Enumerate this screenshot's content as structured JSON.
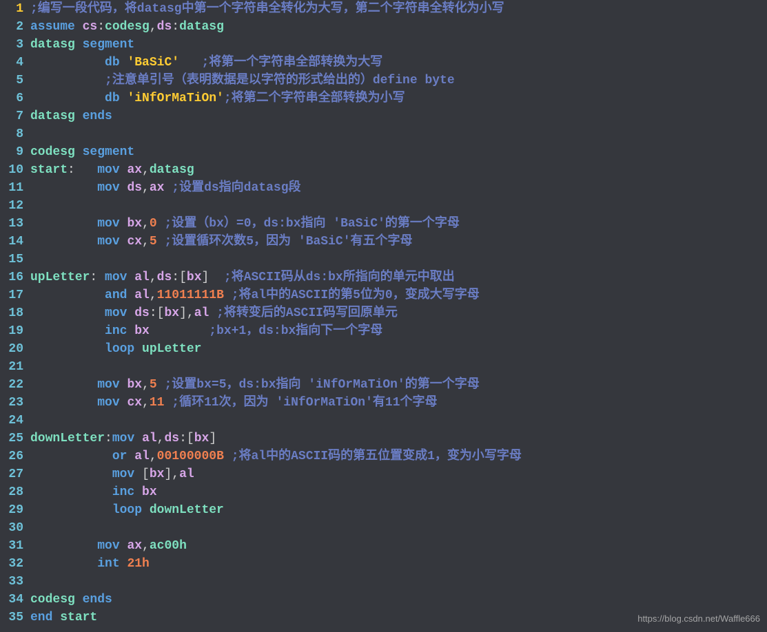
{
  "colors": {
    "bg": "#35373d",
    "gutter_current": "#ffcc33",
    "gutter_normal": "#6ec1d8",
    "keyword": "#5aa0e0",
    "identifier": "#7ee0c0",
    "register": "#d7a6e8",
    "number": "#f08050",
    "string": "#ffcc33",
    "comment": "#6a7dc4",
    "punct": "#d0d0d0"
  },
  "watermark": "https://blog.csdn.net/Waffle666",
  "lines": [
    {
      "n": 1,
      "current": true,
      "tokens": [
        {
          "c": "comment",
          "t": ";编写一段代码，将datasg中第一个字符串全转化为大写，第二个字符串全转化为小写"
        }
      ]
    },
    {
      "n": 2,
      "tokens": [
        {
          "c": "keyword",
          "t": "assume "
        },
        {
          "c": "register",
          "t": "cs"
        },
        {
          "c": "punct",
          "t": ":"
        },
        {
          "c": "identifier",
          "t": "codesg"
        },
        {
          "c": "punct",
          "t": ","
        },
        {
          "c": "register",
          "t": "ds"
        },
        {
          "c": "punct",
          "t": ":"
        },
        {
          "c": "identifier",
          "t": "datasg"
        }
      ]
    },
    {
      "n": 3,
      "tokens": [
        {
          "c": "identifier",
          "t": "datasg "
        },
        {
          "c": "keyword",
          "t": "segment"
        }
      ]
    },
    {
      "n": 4,
      "tokens": [
        {
          "c": "punct",
          "t": "          "
        },
        {
          "c": "keyword",
          "t": "db "
        },
        {
          "c": "string",
          "t": "'BaSiC'"
        },
        {
          "c": "punct",
          "t": "   "
        },
        {
          "c": "comment",
          "t": ";将第一个字符串全部转换为大写"
        }
      ]
    },
    {
      "n": 5,
      "tokens": [
        {
          "c": "punct",
          "t": "          "
        },
        {
          "c": "comment",
          "t": ";注意单引号（表明数据是以字符的形式给出的）define byte"
        }
      ]
    },
    {
      "n": 6,
      "tokens": [
        {
          "c": "punct",
          "t": "          "
        },
        {
          "c": "keyword",
          "t": "db "
        },
        {
          "c": "string",
          "t": "'iNfOrMaTiOn'"
        },
        {
          "c": "comment",
          "t": ";将第二个字符串全部转换为小写"
        }
      ]
    },
    {
      "n": 7,
      "tokens": [
        {
          "c": "identifier",
          "t": "datasg "
        },
        {
          "c": "keyword",
          "t": "ends"
        }
      ]
    },
    {
      "n": 8,
      "tokens": []
    },
    {
      "n": 9,
      "tokens": [
        {
          "c": "identifier",
          "t": "codesg "
        },
        {
          "c": "keyword",
          "t": "segment"
        }
      ]
    },
    {
      "n": 10,
      "tokens": [
        {
          "c": "identifier",
          "t": "start"
        },
        {
          "c": "punct",
          "t": ":   "
        },
        {
          "c": "keyword",
          "t": "mov "
        },
        {
          "c": "register",
          "t": "ax"
        },
        {
          "c": "punct",
          "t": ","
        },
        {
          "c": "identifier",
          "t": "datasg"
        }
      ]
    },
    {
      "n": 11,
      "tokens": [
        {
          "c": "punct",
          "t": "         "
        },
        {
          "c": "keyword",
          "t": "mov "
        },
        {
          "c": "register",
          "t": "ds"
        },
        {
          "c": "punct",
          "t": ","
        },
        {
          "c": "register",
          "t": "ax"
        },
        {
          "c": "punct",
          "t": " "
        },
        {
          "c": "comment",
          "t": ";设置ds指向datasg段"
        }
      ]
    },
    {
      "n": 12,
      "tokens": []
    },
    {
      "n": 13,
      "tokens": [
        {
          "c": "punct",
          "t": "         "
        },
        {
          "c": "keyword",
          "t": "mov "
        },
        {
          "c": "register",
          "t": "bx"
        },
        {
          "c": "punct",
          "t": ","
        },
        {
          "c": "number",
          "t": "0"
        },
        {
          "c": "punct",
          "t": " "
        },
        {
          "c": "comment",
          "t": ";设置（bx）=0，ds:bx指向 'BaSiC'的第一个字母"
        }
      ]
    },
    {
      "n": 14,
      "tokens": [
        {
          "c": "punct",
          "t": "         "
        },
        {
          "c": "keyword",
          "t": "mov "
        },
        {
          "c": "register",
          "t": "cx"
        },
        {
          "c": "punct",
          "t": ","
        },
        {
          "c": "number",
          "t": "5"
        },
        {
          "c": "punct",
          "t": " "
        },
        {
          "c": "comment",
          "t": ";设置循环次数5，因为 'BaSiC'有五个字母"
        }
      ]
    },
    {
      "n": 15,
      "tokens": []
    },
    {
      "n": 16,
      "tokens": [
        {
          "c": "identifier",
          "t": "upLetter"
        },
        {
          "c": "punct",
          "t": ": "
        },
        {
          "c": "keyword",
          "t": "mov "
        },
        {
          "c": "register",
          "t": "al"
        },
        {
          "c": "punct",
          "t": ","
        },
        {
          "c": "register",
          "t": "ds"
        },
        {
          "c": "punct",
          "t": ":["
        },
        {
          "c": "register",
          "t": "bx"
        },
        {
          "c": "punct",
          "t": "]  "
        },
        {
          "c": "comment",
          "t": ";将ASCII码从ds:bx所指向的单元中取出"
        }
      ]
    },
    {
      "n": 17,
      "tokens": [
        {
          "c": "punct",
          "t": "          "
        },
        {
          "c": "keyword",
          "t": "and "
        },
        {
          "c": "register",
          "t": "al"
        },
        {
          "c": "punct",
          "t": ","
        },
        {
          "c": "number",
          "t": "11011111B"
        },
        {
          "c": "punct",
          "t": " "
        },
        {
          "c": "comment",
          "t": ";将al中的ASCII的第5位为0，变成大写字母"
        }
      ]
    },
    {
      "n": 18,
      "tokens": [
        {
          "c": "punct",
          "t": "          "
        },
        {
          "c": "keyword",
          "t": "mov "
        },
        {
          "c": "register",
          "t": "ds"
        },
        {
          "c": "punct",
          "t": ":["
        },
        {
          "c": "register",
          "t": "bx"
        },
        {
          "c": "punct",
          "t": "],"
        },
        {
          "c": "register",
          "t": "al"
        },
        {
          "c": "punct",
          "t": " "
        },
        {
          "c": "comment",
          "t": ";将转变后的ASCII码写回原单元"
        }
      ]
    },
    {
      "n": 19,
      "tokens": [
        {
          "c": "punct",
          "t": "          "
        },
        {
          "c": "keyword",
          "t": "inc "
        },
        {
          "c": "register",
          "t": "bx"
        },
        {
          "c": "punct",
          "t": "        "
        },
        {
          "c": "comment",
          "t": ";bx+1，ds:bx指向下一个字母"
        }
      ]
    },
    {
      "n": 20,
      "tokens": [
        {
          "c": "punct",
          "t": "          "
        },
        {
          "c": "keyword",
          "t": "loop "
        },
        {
          "c": "identifier",
          "t": "upLetter"
        }
      ]
    },
    {
      "n": 21,
      "tokens": []
    },
    {
      "n": 22,
      "tokens": [
        {
          "c": "punct",
          "t": "         "
        },
        {
          "c": "keyword",
          "t": "mov "
        },
        {
          "c": "register",
          "t": "bx"
        },
        {
          "c": "punct",
          "t": ","
        },
        {
          "c": "number",
          "t": "5"
        },
        {
          "c": "punct",
          "t": " "
        },
        {
          "c": "comment",
          "t": ";设置bx=5，ds:bx指向 'iNfOrMaTiOn'的第一个字母"
        }
      ]
    },
    {
      "n": 23,
      "tokens": [
        {
          "c": "punct",
          "t": "         "
        },
        {
          "c": "keyword",
          "t": "mov "
        },
        {
          "c": "register",
          "t": "cx"
        },
        {
          "c": "punct",
          "t": ","
        },
        {
          "c": "number",
          "t": "11"
        },
        {
          "c": "punct",
          "t": " "
        },
        {
          "c": "comment",
          "t": ";循环11次，因为 'iNfOrMaTiOn'有11个字母"
        }
      ]
    },
    {
      "n": 24,
      "tokens": []
    },
    {
      "n": 25,
      "tokens": [
        {
          "c": "identifier",
          "t": "downLetter"
        },
        {
          "c": "punct",
          "t": ":"
        },
        {
          "c": "keyword",
          "t": "mov "
        },
        {
          "c": "register",
          "t": "al"
        },
        {
          "c": "punct",
          "t": ","
        },
        {
          "c": "register",
          "t": "ds"
        },
        {
          "c": "punct",
          "t": ":["
        },
        {
          "c": "register",
          "t": "bx"
        },
        {
          "c": "punct",
          "t": "]"
        }
      ]
    },
    {
      "n": 26,
      "tokens": [
        {
          "c": "punct",
          "t": "           "
        },
        {
          "c": "keyword",
          "t": "or "
        },
        {
          "c": "register",
          "t": "al"
        },
        {
          "c": "punct",
          "t": ","
        },
        {
          "c": "number",
          "t": "00100000B"
        },
        {
          "c": "punct",
          "t": " "
        },
        {
          "c": "comment",
          "t": ";将al中的ASCII码的第五位置变成1，变为小写字母"
        }
      ]
    },
    {
      "n": 27,
      "tokens": [
        {
          "c": "punct",
          "t": "           "
        },
        {
          "c": "keyword",
          "t": "mov "
        },
        {
          "c": "punct",
          "t": "["
        },
        {
          "c": "register",
          "t": "bx"
        },
        {
          "c": "punct",
          "t": "],"
        },
        {
          "c": "register",
          "t": "al"
        }
      ]
    },
    {
      "n": 28,
      "tokens": [
        {
          "c": "punct",
          "t": "           "
        },
        {
          "c": "keyword",
          "t": "inc "
        },
        {
          "c": "register",
          "t": "bx"
        }
      ]
    },
    {
      "n": 29,
      "tokens": [
        {
          "c": "punct",
          "t": "           "
        },
        {
          "c": "keyword",
          "t": "loop "
        },
        {
          "c": "identifier",
          "t": "downLetter"
        }
      ]
    },
    {
      "n": 30,
      "tokens": []
    },
    {
      "n": 31,
      "tokens": [
        {
          "c": "punct",
          "t": "         "
        },
        {
          "c": "keyword",
          "t": "mov "
        },
        {
          "c": "register",
          "t": "ax"
        },
        {
          "c": "punct",
          "t": ","
        },
        {
          "c": "identifier",
          "t": "ac00h"
        }
      ]
    },
    {
      "n": 32,
      "tokens": [
        {
          "c": "punct",
          "t": "         "
        },
        {
          "c": "keyword",
          "t": "int "
        },
        {
          "c": "number",
          "t": "21h"
        }
      ]
    },
    {
      "n": 33,
      "tokens": []
    },
    {
      "n": 34,
      "tokens": [
        {
          "c": "identifier",
          "t": "codesg "
        },
        {
          "c": "keyword",
          "t": "ends"
        }
      ]
    },
    {
      "n": 35,
      "tokens": [
        {
          "c": "keyword",
          "t": "end "
        },
        {
          "c": "identifier",
          "t": "start"
        }
      ]
    }
  ]
}
